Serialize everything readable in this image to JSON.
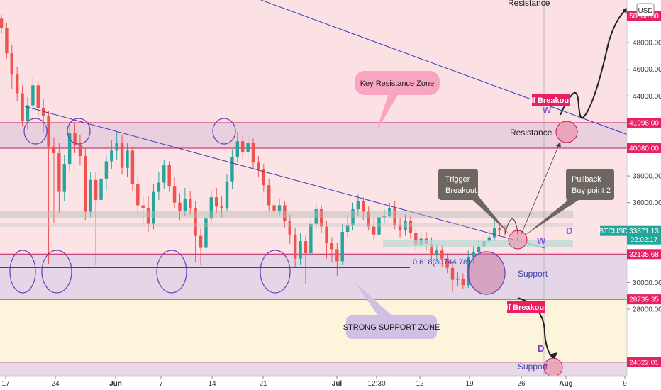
{
  "chart_data": {
    "type": "candlestick",
    "symbol": "BTCUSD",
    "currency_button": "USD",
    "y_ticks": [
      28000,
      30000,
      32000,
      34000,
      36000,
      38000,
      40000,
      42000,
      44000,
      46000,
      48000
    ],
    "y_tick_labels": [
      "28000.00",
      "30000.00",
      "32000.00",
      "34000.00",
      "36000.00",
      "38000.00",
      "40000.00",
      "42000.00",
      "44000.00",
      "46000.00",
      "48000.00"
    ],
    "ylim": [
      23000,
      51200
    ],
    "x_tick_labels": [
      "17",
      "24",
      "Jun",
      "7",
      "14",
      "21",
      "Jul",
      "12:30",
      "12",
      "19",
      "26",
      "Aug",
      "9"
    ],
    "price_tags": [
      {
        "value": 50000,
        "label": "50000.00",
        "color": "#e91e63"
      },
      {
        "value": 41998,
        "label": "41998.00",
        "color": "#e91e63"
      },
      {
        "value": 40080,
        "label": "40080.00",
        "color": "#e91e63"
      },
      {
        "value": 33871.13,
        "label": "33871.13",
        "color": "#26a69a",
        "countdown": "02:02:17",
        "symbol_badge": "BTCUSD"
      },
      {
        "value": 32135.68,
        "label": "32135.68",
        "color": "#e91e63"
      },
      {
        "value": 28739.35,
        "label": "28739.35",
        "color": "#e91e63"
      },
      {
        "value": 24022.01,
        "label": "24022.01",
        "color": "#e91e63"
      }
    ],
    "zones": [
      {
        "from": 41998,
        "to": 51200,
        "color": "#fbe1e3"
      },
      {
        "from": 40080,
        "to": 41998,
        "color": "#eacfdf"
      },
      {
        "from": 32135.68,
        "to": 40080,
        "color": "#fce3e5"
      },
      {
        "from": 28739.35,
        "to": 32135.68,
        "color": "#e4d6e6"
      },
      {
        "from": 24022.01,
        "to": 28739.35,
        "color": "#fdf4dc"
      },
      {
        "from": 23000,
        "to": 24022.01,
        "color": "#e9d9e6"
      }
    ],
    "level_labels": [
      {
        "text": "Resistance",
        "value": 50000
      },
      {
        "text": "Resistance",
        "value": 41030
      },
      {
        "text": "Support",
        "value": 30250
      },
      {
        "text": "Support",
        "value": 23000
      }
    ],
    "fib_label": "0.618(30744.78)",
    "callouts": {
      "key_resistance": "Key Resistance Zone",
      "strong_support": "STRONG SUPPORT ZONE",
      "trigger_line1": "Trigger",
      "trigger_line2": "Breakout",
      "pullback_line1": "Pullback",
      "pullback_line2": "Buy point 2",
      "if_breakout_top": "If Breakout",
      "if_breakout_bottom": "If Breakout"
    },
    "wave_letters": {
      "w_top": "W",
      "d_right1": "D",
      "d_right2": "D",
      "w_right": "W",
      "d_bottom": "D"
    },
    "candles": [
      [
        49800,
        49100,
        50100,
        48700
      ],
      [
        49100,
        47200,
        49500,
        46800
      ],
      [
        47200,
        45600,
        47800,
        44500
      ],
      [
        45600,
        44200,
        46200,
        43600
      ],
      [
        44200,
        42100,
        44800,
        41700
      ],
      [
        42100,
        43300,
        43900,
        41500
      ],
      [
        43300,
        44800,
        45500,
        42900
      ],
      [
        44800,
        43100,
        45100,
        42500
      ],
      [
        43100,
        42500,
        43800,
        41200
      ],
      [
        42500,
        40200,
        42900,
        31400
      ],
      [
        40200,
        39700,
        40900,
        34500
      ],
      [
        39700,
        36800,
        40500,
        35200
      ],
      [
        36800,
        38900,
        39600,
        36100
      ],
      [
        38900,
        41200,
        41800,
        38300
      ],
      [
        41200,
        40300,
        42000,
        39700
      ],
      [
        40300,
        39500,
        41100,
        38800
      ],
      [
        39500,
        35300,
        40100,
        34700
      ],
      [
        35300,
        37700,
        38300,
        34900
      ],
      [
        37700,
        36200,
        38300,
        31300
      ],
      [
        36200,
        37800,
        38300,
        35500
      ],
      [
        37800,
        39100,
        39600,
        36900
      ],
      [
        39100,
        39900,
        40700,
        38500
      ],
      [
        39900,
        40500,
        41300,
        39200
      ],
      [
        40500,
        38600,
        41100,
        38100
      ],
      [
        38600,
        39900,
        40500,
        37900
      ],
      [
        39900,
        37400,
        40200,
        36900
      ],
      [
        37400,
        35800,
        37900,
        35100
      ],
      [
        35800,
        35600,
        36500,
        34300
      ],
      [
        35600,
        34400,
        36500,
        33800
      ],
      [
        34400,
        36800,
        37400,
        34000
      ],
      [
        36800,
        37500,
        38300,
        36200
      ],
      [
        37500,
        38800,
        39200,
        37000
      ],
      [
        38800,
        37200,
        39100,
        36800
      ],
      [
        37200,
        36000,
        37900,
        35600
      ],
      [
        36000,
        35400,
        36700,
        34700
      ],
      [
        35400,
        36300,
        37100,
        35000
      ],
      [
        36300,
        35600,
        36900,
        35100
      ],
      [
        35600,
        33500,
        36100,
        31500
      ],
      [
        33500,
        32600,
        34100,
        31300
      ],
      [
        32600,
        34800,
        35300,
        32400
      ],
      [
        34800,
        36400,
        36900,
        34500
      ],
      [
        36400,
        35700,
        37100,
        35200
      ],
      [
        35700,
        35600,
        36500,
        34900
      ],
      [
        35600,
        37600,
        38100,
        35400
      ],
      [
        37600,
        39400,
        40000,
        37000
      ],
      [
        39400,
        40600,
        41300,
        39000
      ],
      [
        40600,
        39800,
        41000,
        39300
      ],
      [
        39800,
        40500,
        41100,
        39200
      ],
      [
        40500,
        39000,
        40800,
        38500
      ],
      [
        39000,
        38500,
        39500,
        37900
      ],
      [
        38500,
        37300,
        38900,
        36800
      ],
      [
        37300,
        35800,
        37800,
        35400
      ],
      [
        35800,
        35400,
        36400,
        34900
      ],
      [
        35400,
        35800,
        36300,
        35000
      ],
      [
        35800,
        34600,
        36100,
        34100
      ],
      [
        34600,
        33600,
        35100,
        32900
      ],
      [
        33600,
        31800,
        34100,
        31200
      ],
      [
        31800,
        33100,
        33700,
        31300
      ],
      [
        33100,
        32200,
        33500,
        29900
      ],
      [
        32200,
        34400,
        35000,
        31900
      ],
      [
        34400,
        35500,
        35900,
        34000
      ],
      [
        35500,
        34200,
        35800,
        33700
      ],
      [
        34200,
        33000,
        34600,
        31800
      ],
      [
        33000,
        32500,
        33400,
        31500
      ],
      [
        32500,
        31600,
        33000,
        30500
      ],
      [
        31600,
        33800,
        34400,
        31300
      ],
      [
        33800,
        34300,
        35000,
        33400
      ],
      [
        34300,
        35500,
        36000,
        33900
      ],
      [
        35500,
        36100,
        36600,
        35000
      ],
      [
        36100,
        35300,
        36400,
        34700
      ],
      [
        35300,
        34200,
        35700,
        33900
      ],
      [
        34200,
        33600,
        34800,
        33200
      ],
      [
        33600,
        34900,
        35400,
        33300
      ],
      [
        34900,
        35000,
        35500,
        34400
      ],
      [
        35000,
        35600,
        36000,
        34900
      ],
      [
        35600,
        34300,
        36100,
        34000
      ],
      [
        34300,
        33900,
        34800,
        33400
      ],
      [
        33900,
        34600,
        35100,
        33500
      ],
      [
        34600,
        33700,
        35000,
        33300
      ],
      [
        33700,
        32800,
        34000,
        32400
      ],
      [
        32800,
        33300,
        33800,
        32500
      ],
      [
        33300,
        32900,
        33800,
        32400
      ],
      [
        32900,
        32100,
        33400,
        31700
      ],
      [
        32100,
        32400,
        32900,
        31500
      ],
      [
        32400,
        31800,
        32800,
        31200
      ],
      [
        31800,
        31100,
        32200,
        30700
      ],
      [
        31100,
        30200,
        31400,
        29300
      ],
      [
        30200,
        30300,
        30800,
        29700
      ],
      [
        30300,
        29800,
        30700,
        29500
      ],
      [
        29800,
        31900,
        32400,
        29600
      ],
      [
        31900,
        32300,
        32800,
        31400
      ],
      [
        32300,
        32700,
        33200,
        32100
      ],
      [
        32700,
        33100,
        33600,
        32500
      ],
      [
        33100,
        33400,
        33900,
        32900
      ],
      [
        33400,
        34100,
        34600,
        33100
      ],
      [
        34100,
        33900,
        34500,
        33600
      ],
      [
        33900,
        33871.13,
        34300,
        33500
      ]
    ],
    "title": "",
    "xlabel": "",
    "ylabel": "",
    "grid": false
  }
}
